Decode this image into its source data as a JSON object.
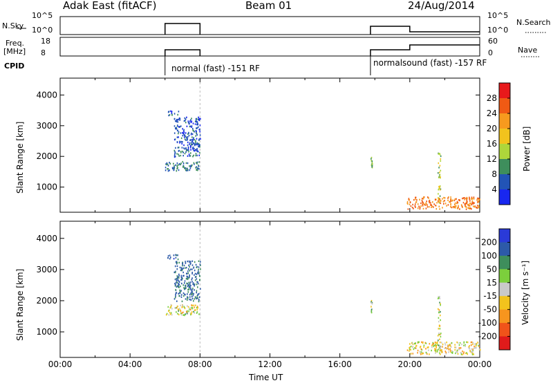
{
  "header": {
    "title": "Adak East (fitACF)",
    "beam": "Beam 01",
    "date": "24/Aug/2014"
  },
  "panels": {
    "nsky_label": "N.Sky",
    "nsearch_label": "N.Search",
    "freq_label_1": "Freq.",
    "freq_label_2": "[MHz]",
    "nave_label": "Nave",
    "cpid_label": "CPID",
    "nsky_ticks": [
      "10^5",
      "10^0"
    ],
    "nsearch_ticks": [
      "10^5",
      "10^0"
    ],
    "freq_ticks": [
      "18",
      "8"
    ],
    "nave_ticks": [
      "60",
      "0"
    ],
    "cpid_1": "normal (fast) -151 RF",
    "cpid_2": "normalsound (fast) -157 RF"
  },
  "axes": {
    "ylabel": "Slant Range [km]",
    "xlabel": "Time UT",
    "yticks": [
      "4000",
      "3000",
      "2000",
      "1000"
    ],
    "xticks": [
      "00:00",
      "04:00",
      "08:00",
      "12:00",
      "16:00",
      "20:00",
      "00:00"
    ]
  },
  "colorbars": {
    "power": {
      "title": "Power [dB]",
      "ticks": [
        "28",
        "24",
        "20",
        "16",
        "12",
        "8",
        "4"
      ],
      "colors": [
        "#e8191b",
        "#f05a14",
        "#f79a1e",
        "#f2c31d",
        "#aed63b",
        "#3e8e5c",
        "#2254b6",
        "#1827f0"
      ]
    },
    "velocity": {
      "title": "Velocity [m s⁻¹]",
      "ticks": [
        "200",
        "100",
        "50",
        "15",
        "-15",
        "-50",
        "-100",
        "-200"
      ],
      "colors": [
        "#2a3ad8",
        "#2d5aa8",
        "#3e8e5c",
        "#7ccf3c",
        "#c9c9c9",
        "#f2c31d",
        "#f7951e",
        "#f0531a",
        "#e01b1b"
      ]
    }
  },
  "chart_data": {
    "type": "heatmap",
    "title": "Adak East (fitACF)",
    "subtitle": "Beam 01 24/Aug/2014",
    "xlabel": "Time UT",
    "ylabel": "Slant Range [km]",
    "xlim": [
      "00:00",
      "24:00"
    ],
    "ylim": [
      180,
      4550
    ],
    "grid": false,
    "series": [
      {
        "name": "Power [dB]",
        "clim": [
          0,
          32
        ],
        "blobs": [
          {
            "t": "06:00-08:00",
            "range_km": [
              1550,
              1850
            ],
            "value": 8
          },
          {
            "t": "06:05-06:45",
            "range_km": [
              3350,
              3500
            ],
            "value": 6
          },
          {
            "t": "06:30-08:00",
            "range_km": [
              2000,
              3300
            ],
            "value": 6
          },
          {
            "t": "17:45-17:50",
            "range_km": [
              1600,
              2050
            ],
            "value": 12
          },
          {
            "t": "21:35-21:45",
            "range_km": [
              500,
              2200
            ],
            "value": 14
          },
          {
            "t": "19:50-24:00",
            "range_km": [
              300,
              700
            ],
            "value": 24
          }
        ]
      },
      {
        "name": "Velocity [m s-1]",
        "clim": [
          -250,
          250
        ],
        "blobs": [
          {
            "t": "06:00-08:00",
            "range_km": [
              1550,
              1900
            ],
            "value": 0
          },
          {
            "t": "06:05-06:45",
            "range_km": [
              3350,
              3500
            ],
            "value": 150
          },
          {
            "t": "06:30-08:00",
            "range_km": [
              2000,
              3300
            ],
            "value": 120
          },
          {
            "t": "17:45-17:50",
            "range_km": [
              1600,
              2050
            ],
            "value": 30
          },
          {
            "t": "21:35-21:45",
            "range_km": [
              500,
              2200
            ],
            "value": 0
          },
          {
            "t": "19:50-24:00",
            "range_km": [
              300,
              700
            ],
            "value": -20
          }
        ]
      }
    ]
  }
}
